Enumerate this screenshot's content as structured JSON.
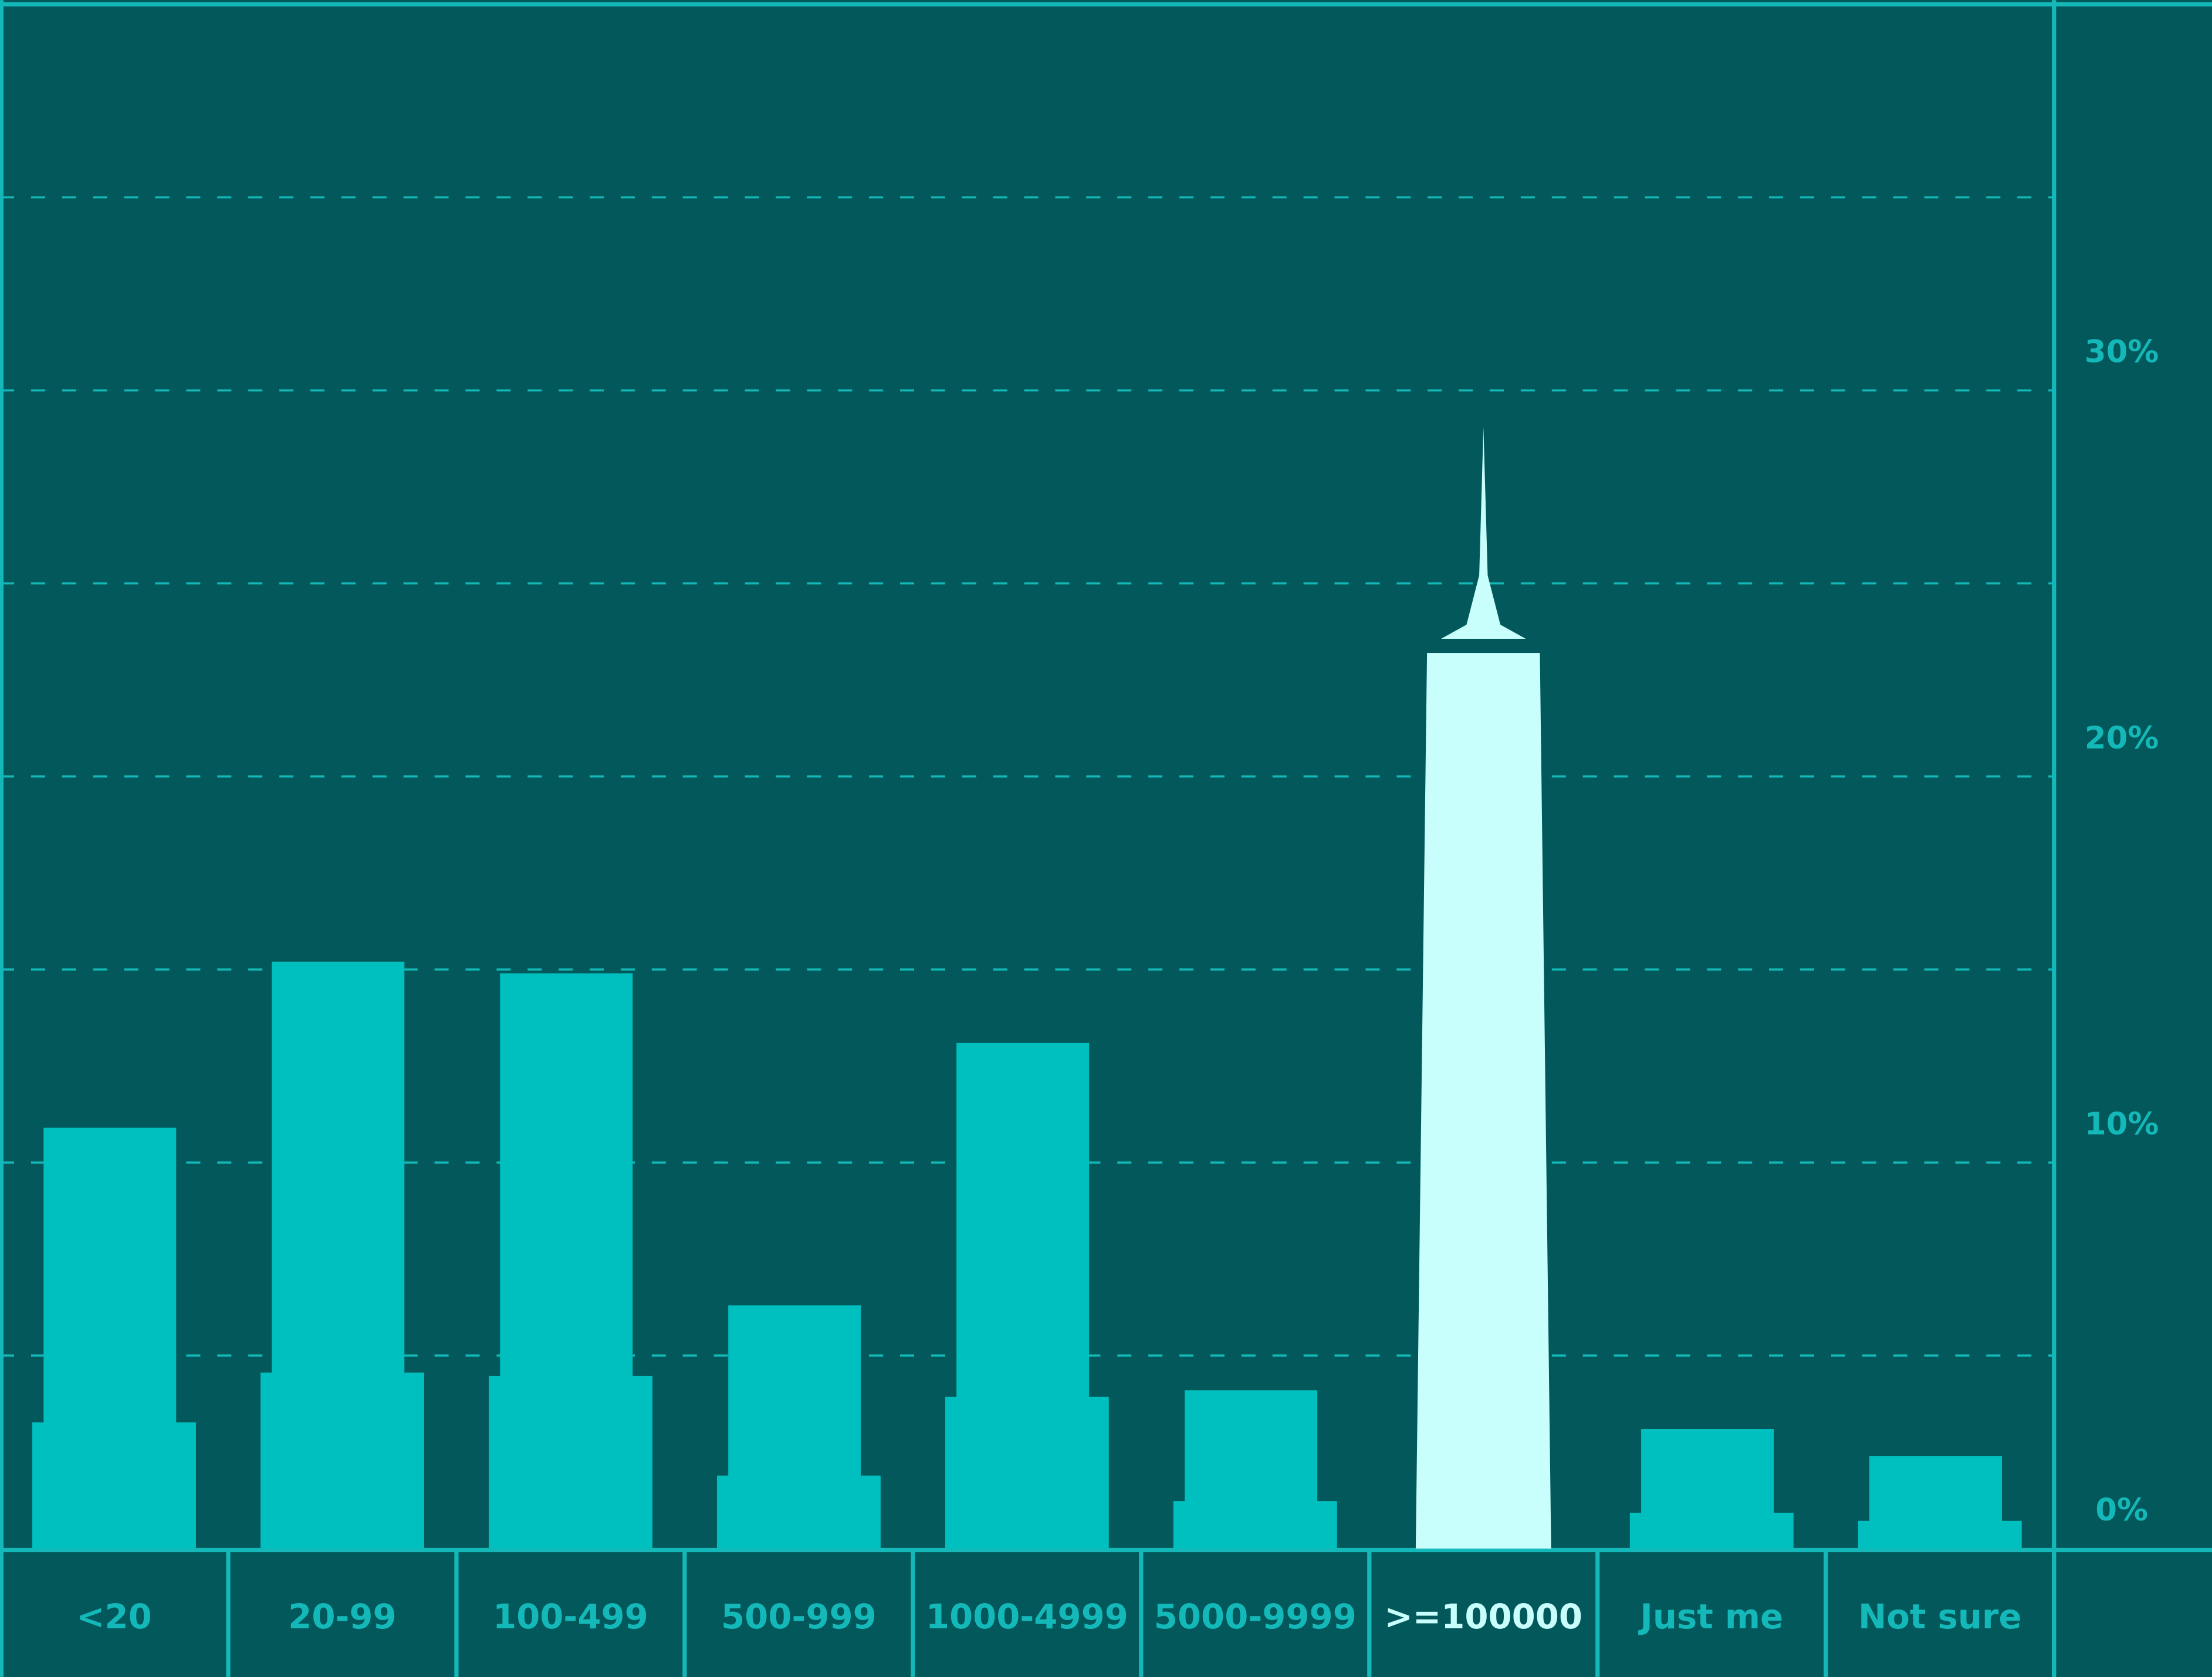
{
  "chart_data": {
    "type": "bar",
    "categories": [
      "<20",
      "20-99",
      "100-499",
      "500-999",
      "1000-4999",
      "5000-9999",
      ">=100000",
      "Just me",
      "Not sure"
    ],
    "values": [
      10.9,
      15.2,
      14.9,
      6.3,
      13.1,
      4.1,
      23.2,
      3.1,
      2.4
    ],
    "color": "#00bfbf",
    "highlight_color": "#c8fffd",
    "highlight_index": 6,
    "ylim": [
      0,
      40
    ],
    "yticks": [
      {
        "value": 0,
        "label": "0%"
      },
      {
        "value": 10,
        "label": "10%"
      },
      {
        "value": 20,
        "label": "20%"
      },
      {
        "value": 30,
        "label": "30%"
      }
    ],
    "yminorticks": [
      5,
      15,
      25,
      35
    ],
    "grid": true,
    "axis_side": "right"
  }
}
